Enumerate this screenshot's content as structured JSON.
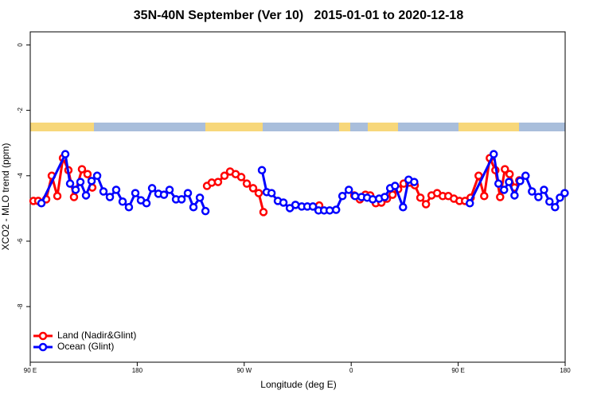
{
  "chart_data": {
    "type": "line",
    "title": "35N-40N September (Ver 10)   2015-01-01 to 2020-12-18",
    "xlabel": "Longitude (deg E)",
    "ylabel": "XCO2 - MLO trend (ppm)",
    "xlim": [
      90,
      540
    ],
    "ylim": [
      -9.7,
      0.4
    ],
    "xticks": [
      {
        "value": 90,
        "label": "90 E"
      },
      180,
      {
        "value": 270,
        "label": "90 W"
      },
      {
        "value": 360,
        "label": "0"
      },
      {
        "value": 450,
        "label": "90 E"
      },
      {
        "value": 540,
        "label": "180"
      }
    ],
    "yticks": [
      0,
      -2,
      -4,
      -6,
      -8
    ],
    "legend": "lower left",
    "series": [
      {
        "name": "Land (Nadir&Glint)",
        "color": "#ff0000",
        "x": [
          92.7,
          96.7,
          103.4,
          108.1,
          112.8,
          117.5,
          122.1,
          126.8,
          133.5,
          138.2,
          142.2,
          null,
          238.7,
          242.7,
          248.0,
          253.4,
          258.1,
          262.8,
          267.5,
          272.2,
          277.5,
          282.2,
          286.2,
          null,
          333.1,
          null,
          362.6,
          367.3,
          372.0,
          376.0,
          380.7,
          385.4,
          390.1,
          394.8,
          399.5,
          404.1,
          408.8,
          413.5,
          418.2,
          422.9,
          427.6,
          432.3,
          437.0,
          441.7,
          446.4,
          451.1,
          455.8,
          460.5,
          467.2,
          471.9,
          476.6,
          481.3,
          485.3,
          489.3,
          493.3,
          497.4,
          501.4
        ],
        "values": [
          -4.77,
          -4.77,
          -4.72,
          -4.0,
          -4.62,
          -3.46,
          -3.83,
          -4.65,
          -3.8,
          -3.95,
          -4.36,
          null,
          -4.31,
          -4.21,
          -4.19,
          -4.0,
          -3.87,
          -3.95,
          -4.04,
          -4.24,
          -4.38,
          -4.53,
          -5.11,
          null,
          -4.91,
          null,
          -4.6,
          -4.72,
          -4.58,
          -4.6,
          -4.84,
          -4.82,
          -4.7,
          -4.58,
          -4.41,
          -4.24,
          -4.21,
          -4.29,
          -4.67,
          -4.87,
          -4.6,
          -4.53,
          -4.62,
          -4.62,
          -4.7,
          -4.77,
          -4.77,
          -4.67,
          -4.0,
          -4.62,
          -3.46,
          -3.83,
          -4.65,
          -3.8,
          -3.95,
          -4.36,
          -4.14
        ]
      },
      {
        "name": "Ocean (Glint)",
        "color": "#0000ff",
        "x": [
          99.4,
          119.5,
          123.5,
          128.2,
          132.2,
          136.9,
          141.6,
          146.3,
          151.6,
          157.0,
          162.3,
          167.7,
          173.0,
          178.4,
          183.1,
          187.8,
          192.5,
          197.8,
          202.5,
          207.2,
          212.6,
          217.3,
          222.6,
          227.3,
          232.7,
          237.4,
          null,
          284.9,
          288.9,
          293.0,
          298.3,
          303.0,
          308.4,
          313.1,
          318.4,
          323.1,
          327.8,
          332.5,
          337.2,
          341.9,
          347.3,
          352.6,
          358.0,
          363.3,
          368.7,
          373.4,
          378.1,
          383.5,
          388.2,
          392.8,
          396.9,
          403.6,
          408.3,
          413.0,
          null,
          459.8,
          479.9,
          483.9,
          488.6,
          492.7,
          497.4,
          502.1,
          506.7,
          512.1,
          517.5,
          522.2,
          526.8,
          531.5,
          535.6,
          539.6
        ],
        "values": [
          -4.84,
          -3.34,
          -4.24,
          -4.43,
          -4.19,
          -4.6,
          -4.16,
          -4.0,
          -4.48,
          -4.65,
          -4.43,
          -4.79,
          -4.96,
          -4.53,
          -4.75,
          -4.84,
          -4.38,
          -4.55,
          -4.58,
          -4.43,
          -4.72,
          -4.72,
          -4.53,
          -4.96,
          -4.67,
          -5.08,
          null,
          -3.83,
          -4.5,
          -4.53,
          -4.77,
          -4.82,
          -4.99,
          -4.89,
          -4.94,
          -4.94,
          -4.94,
          -5.06,
          -5.06,
          -5.06,
          -5.04,
          -4.62,
          -4.43,
          -4.62,
          -4.65,
          -4.67,
          -4.72,
          -4.7,
          -4.65,
          -4.38,
          -4.31,
          -4.96,
          -4.12,
          -4.19,
          null,
          -4.84,
          -3.34,
          -4.24,
          -4.43,
          -4.19,
          -4.6,
          -4.16,
          -4.0,
          -4.48,
          -4.65,
          -4.43,
          -4.79,
          -4.96,
          -4.67,
          -4.53
        ]
      }
    ]
  }
}
